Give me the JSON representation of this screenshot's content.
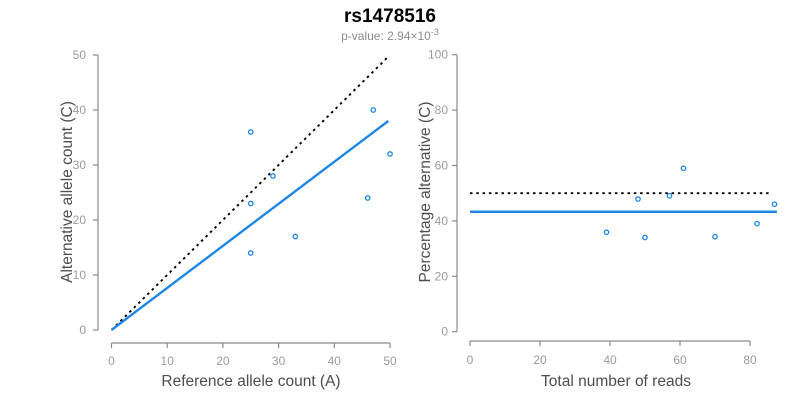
{
  "header": {
    "title": "rs1478516",
    "subtitle": {
      "prefix": "p-value: ",
      "mantissa": "2.94×10",
      "exponent": "-3"
    }
  },
  "colors": {
    "accent": "#1E87E5",
    "dotted_line": "#000000",
    "axis_line": "#8A8A8A",
    "tick_label": "#9B9B9B",
    "axis_title": "#4D4D4D",
    "subtitle": "#8C8C8C"
  },
  "chart_data": [
    {
      "id": "left",
      "type": "scatter",
      "xlabel": "Reference allele count (A)",
      "ylabel": "Alternative allele count (C)",
      "xlim": [
        0,
        50
      ],
      "ylim": [
        0,
        50
      ],
      "grid": false,
      "xticks": [
        0,
        10,
        20,
        30,
        40,
        50
      ],
      "yticks": [
        0,
        10,
        20,
        30,
        40,
        50
      ],
      "points": [
        [
          25,
          36
        ],
        [
          47,
          40
        ],
        [
          50,
          32
        ],
        [
          29,
          28
        ],
        [
          46,
          24
        ],
        [
          25,
          23
        ],
        [
          33,
          17
        ],
        [
          25,
          14
        ]
      ],
      "lines": [
        {
          "name": "identity-line",
          "style": "dotted",
          "color": "#000000",
          "from": [
            0,
            0
          ],
          "to": [
            49.9,
            49.9
          ]
        },
        {
          "name": "expected-ratio-line",
          "style": "solid",
          "color": "#1E87E5",
          "from": [
            0,
            0
          ],
          "to": [
            49.7,
            38.0
          ]
        }
      ]
    },
    {
      "id": "right",
      "type": "scatter",
      "xlabel": "Total number of reads",
      "ylabel": "Percentage alternative (C)",
      "xlim": [
        0,
        87
      ],
      "ylim": [
        0,
        100
      ],
      "grid": false,
      "xticks": [
        0,
        20,
        40,
        60,
        80
      ],
      "yticks": [
        0,
        20,
        40,
        60,
        80,
        100
      ],
      "points": [
        [
          61,
          59.0
        ],
        [
          87,
          46.0
        ],
        [
          82,
          39.0
        ],
        [
          57,
          49.1
        ],
        [
          70,
          34.3
        ],
        [
          48,
          47.9
        ],
        [
          50,
          34.0
        ],
        [
          39,
          35.9
        ]
      ],
      "lines": [
        {
          "name": "null-50pct-line",
          "style": "dotted",
          "color": "#000000",
          "from": [
            0,
            50
          ],
          "to": [
            86.3,
            50
          ]
        },
        {
          "name": "observed-ratio-line",
          "style": "solid",
          "color": "#1E87E5",
          "from": [
            0,
            43.3
          ],
          "to": [
            87.7,
            43.3
          ]
        }
      ]
    }
  ]
}
